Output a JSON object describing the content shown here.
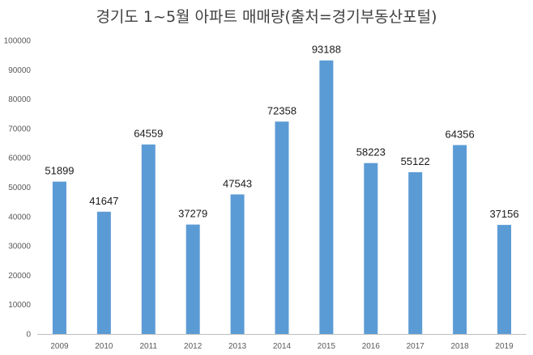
{
  "chart_data": {
    "type": "bar",
    "title": "경기도 1~5월 아파트 매매량(출처=경기부동산포털)",
    "xlabel": "",
    "ylabel": "",
    "categories": [
      "2009",
      "2010",
      "2011",
      "2012",
      "2013",
      "2014",
      "2015",
      "2016",
      "2017",
      "2018",
      "2019"
    ],
    "values": [
      51899,
      41647,
      64559,
      37279,
      47543,
      72358,
      93188,
      58223,
      55122,
      64356,
      37156
    ],
    "ylim": [
      0,
      100000
    ],
    "yticks": [
      "0",
      "10000",
      "20000",
      "30000",
      "40000",
      "50000",
      "60000",
      "70000",
      "80000",
      "90000",
      "100000"
    ],
    "data_labels": [
      "51899",
      "41647",
      "64559",
      "37279",
      "47543",
      "72358",
      "93188",
      "58223",
      "55122",
      "64356",
      "37156"
    ],
    "grid": false,
    "legend": "none",
    "colors": {
      "bar": "#5b9bd5",
      "axis": "#bfbfbf",
      "title": "#404040",
      "tick": "#595959",
      "label": "#1a1a1a"
    }
  }
}
